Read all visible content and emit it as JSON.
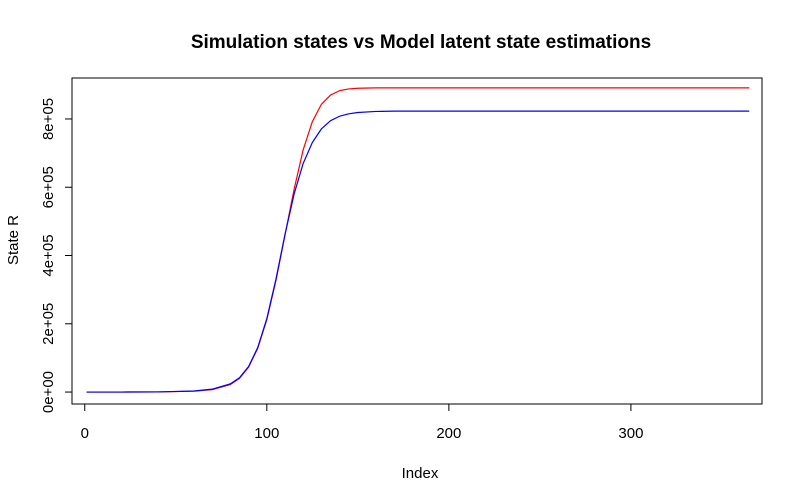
{
  "chart_data": {
    "type": "line",
    "title": "Simulation states vs Model latent state estimations",
    "xlabel": "Index",
    "ylabel": "State R",
    "xlim": [
      -7,
      372
    ],
    "ylim": [
      -35000,
      920000
    ],
    "x_ticks": [
      0,
      100,
      200,
      300
    ],
    "x_tick_labels": [
      "0",
      "100",
      "200",
      "300"
    ],
    "y_ticks": [
      0,
      200000,
      400000,
      600000,
      800000
    ],
    "y_tick_labels": [
      "0e+00",
      "2e+05",
      "4e+05",
      "6e+05",
      "8e+05"
    ],
    "grid": false,
    "legend": "none",
    "series": [
      {
        "color": "#ff0000",
        "x": [
          1,
          20,
          40,
          60,
          70,
          80,
          85,
          90,
          95,
          100,
          105,
          110,
          115,
          120,
          125,
          130,
          135,
          140,
          145,
          150,
          160,
          170,
          180,
          200,
          250,
          300,
          365
        ],
        "values": [
          0,
          0,
          300,
          2500,
          7000,
          22000,
          40000,
          73000,
          128000,
          212000,
          326000,
          460000,
          594000,
          710000,
          792000,
          843000,
          870000,
          883000,
          888000,
          890000,
          891000,
          891000,
          891000,
          891000,
          891000,
          891000,
          891000
        ]
      },
      {
        "color": "#0000ff",
        "x": [
          1,
          20,
          40,
          60,
          70,
          80,
          85,
          90,
          95,
          100,
          105,
          110,
          115,
          120,
          125,
          130,
          135,
          140,
          145,
          150,
          160,
          170,
          180,
          200,
          250,
          300,
          365
        ],
        "values": [
          0,
          0,
          400,
          3000,
          8500,
          24000,
          42000,
          75000,
          130000,
          215000,
          330000,
          462000,
          580000,
          670000,
          731000,
          771000,
          795000,
          808000,
          815000,
          819000,
          822000,
          823000,
          823000,
          823000,
          823000,
          823000,
          823000
        ]
      }
    ]
  }
}
